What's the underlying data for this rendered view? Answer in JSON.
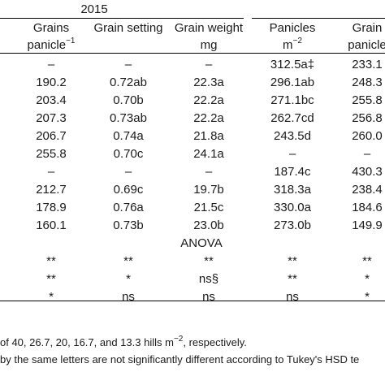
{
  "year_header": "2015",
  "headers": [
    "Grains",
    "Grain setting",
    "Grain weight",
    "Panicles",
    "Grain"
  ],
  "units": [
    "panicle−1",
    "",
    "mg",
    "m−2",
    "panicle"
  ],
  "rows": [
    [
      "–",
      "–",
      "–",
      "312.5a‡",
      "233.1"
    ],
    [
      "190.2",
      "0.72ab",
      "22.3a",
      "296.1ab",
      "248.3"
    ],
    [
      "203.4",
      "0.70b",
      "22.2a",
      "271.1bc",
      "255.8"
    ],
    [
      "207.3",
      "0.73ab",
      "22.2a",
      "262.7cd",
      "256.8"
    ],
    [
      "206.7",
      "0.74a",
      "21.8a",
      "243.5d",
      "260.0"
    ],
    [
      "255.8",
      "0.70c",
      "24.1a",
      "–",
      "–"
    ],
    [
      "–",
      "–",
      "–",
      "187.4c",
      "430.3"
    ],
    [
      "212.7",
      "0.69c",
      "19.7b",
      "318.3a",
      "238.4"
    ],
    [
      "178.9",
      "0.76a",
      "21.5c",
      "330.0a",
      "184.6"
    ],
    [
      "160.1",
      "0.73b",
      "23.0b",
      "273.0b",
      "149.9"
    ]
  ],
  "anova_label": "ANOVA",
  "anova_rows": [
    [
      "**",
      "**",
      "**",
      "**",
      "**"
    ],
    [
      "**",
      "*",
      "ns§",
      "**",
      "*"
    ],
    [
      "*",
      "ns",
      "ns",
      "ns",
      "*"
    ]
  ],
  "footnotes": [
    "of 40, 26.7, 20, 16.7, and 13.3 hills m−2, respectively.",
    "by the same letters are not significantly different according to Tukey's HSD te"
  ]
}
